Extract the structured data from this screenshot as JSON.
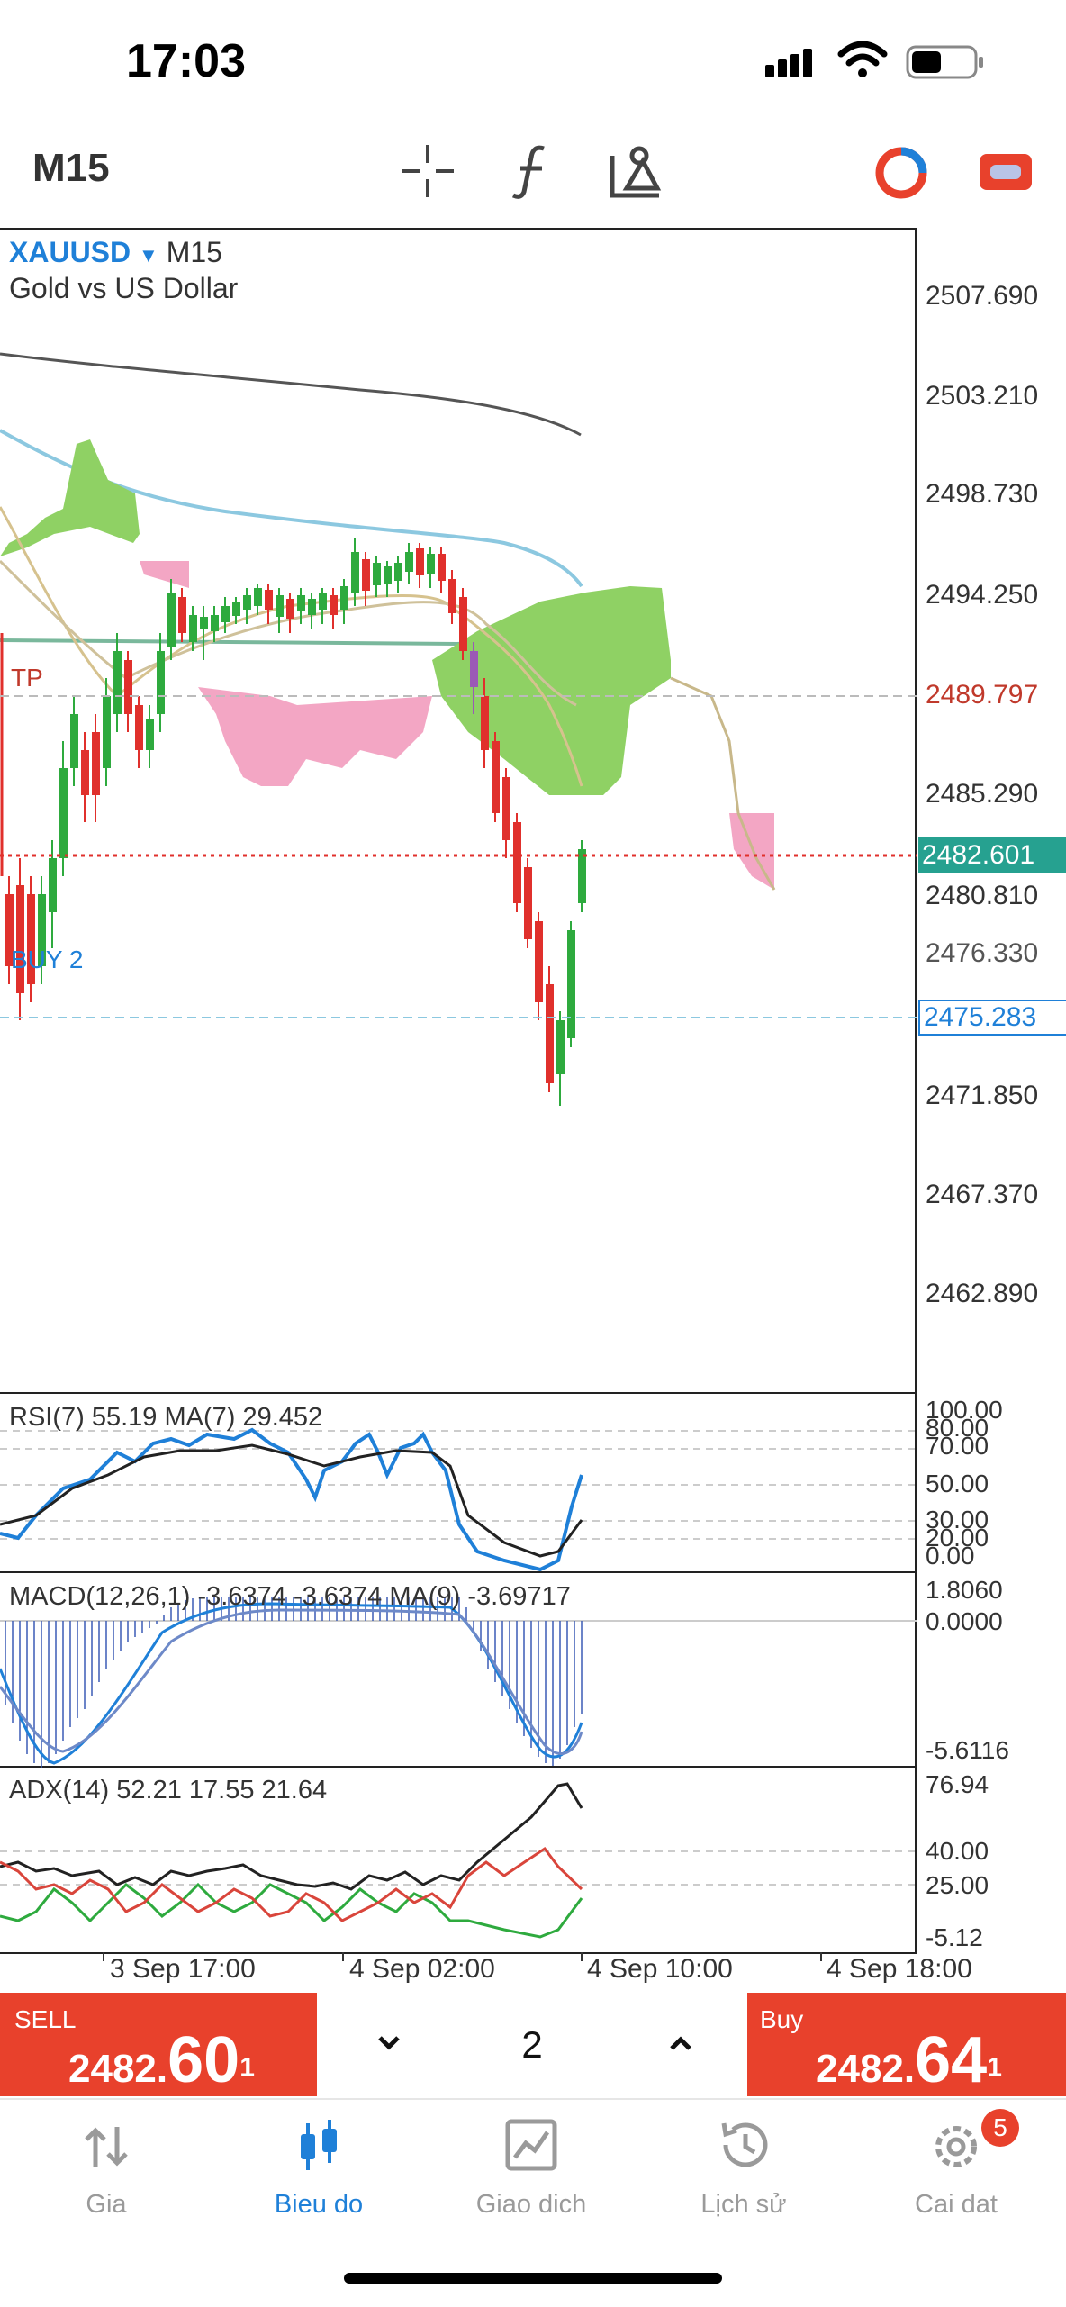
{
  "status": {
    "time": "17:03"
  },
  "toolbar": {
    "timeframe": "M15",
    "icons": [
      "crosshair-icon",
      "function-icon",
      "objects-icon",
      "account-icon",
      "trade-icon"
    ]
  },
  "chart": {
    "symbol": "XAUUSD",
    "symbol_timeframe": "M15",
    "description": "Gold vs US Dollar",
    "price_labels": [
      "2507.690",
      "2503.210",
      "2498.730",
      "2494.250",
      "2489.797",
      "2485.290",
      "2482.601",
      "2480.810",
      "2476.330",
      "2475.283",
      "2471.850",
      "2467.370",
      "2462.890"
    ],
    "tp_label": "TP",
    "tp_price": "2489.797",
    "current_price": "2482.601",
    "buy_label": "BUY 2",
    "buy_price": "2475.283",
    "colors": {
      "bull": "#2eaa3e",
      "bear": "#e0302c",
      "cloud_green": "#8fd164",
      "cloud_pink": "#f3a6c4",
      "accent": "#1f80d8",
      "current_price_bg": "#26a190"
    }
  },
  "rsi": {
    "label": "RSI(7) 55.19 MA(7) 29.452",
    "levels": [
      "100.00",
      "80.00",
      "70.00",
      "50.00",
      "30.00",
      "20.00",
      "0.00"
    ]
  },
  "macd": {
    "label": "MACD(12,26,1) -3.6374 -3.6374 MA(9) -3.69717",
    "levels": [
      "1.8060",
      "0.0000",
      "-5.6116"
    ]
  },
  "adx": {
    "label": "ADX(14) 52.21 17.55 21.64",
    "levels": [
      "76.94",
      "40.00",
      "25.00",
      "-5.12"
    ]
  },
  "time_axis": [
    "3 Sep 17:00",
    "4 Sep 02:00",
    "4 Sep 10:00",
    "4 Sep 18:00"
  ],
  "trade": {
    "sell_label": "SELL",
    "sell_price_main": "2482.",
    "sell_price_big": "60",
    "sell_price_sup": "1",
    "buy_label": "Buy",
    "buy_price_main": "2482.",
    "buy_price_big": "64",
    "buy_price_sup": "1",
    "lot": "2"
  },
  "nav": {
    "items": [
      {
        "label": "Gia",
        "icon": "quotes-icon"
      },
      {
        "label": "Bieu do",
        "icon": "chart-icon"
      },
      {
        "label": "Giao dich",
        "icon": "trade-icon"
      },
      {
        "label": "Lịch sử",
        "icon": "history-icon"
      },
      {
        "label": "Cai dat",
        "icon": "settings-icon"
      }
    ],
    "badge": "5",
    "active_color": "#1f80d8"
  }
}
